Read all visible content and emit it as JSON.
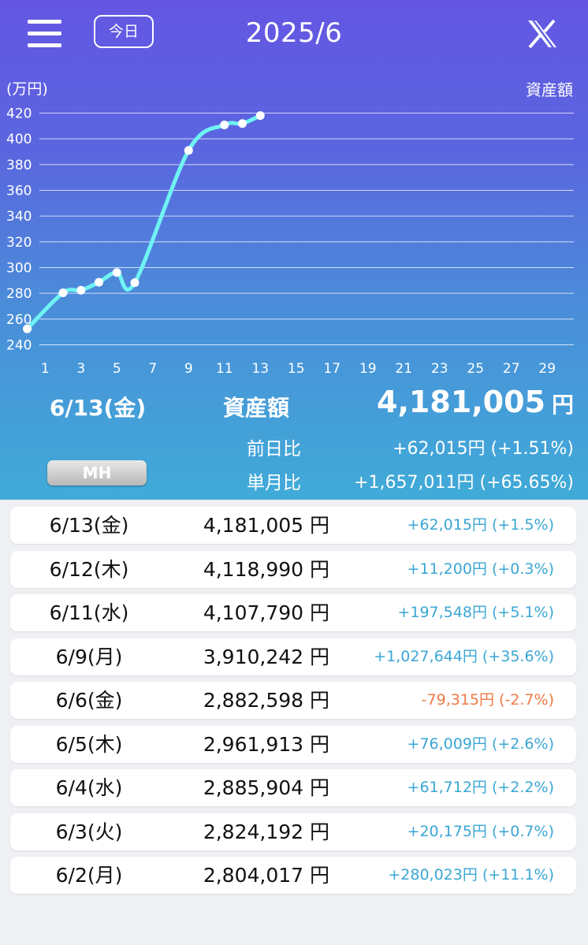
{
  "header": {
    "today_label": "今日",
    "month_title": "2025/6",
    "menu_icon": "hamburger-menu-icon",
    "share_icon": "x-logo-icon"
  },
  "chart_data": {
    "type": "line",
    "unit_label": "(万円)",
    "series_label": "資産額",
    "y_ticks": [
      420,
      400,
      380,
      360,
      340,
      320,
      300,
      280,
      260,
      240
    ],
    "x_ticks": [
      1,
      3,
      5,
      7,
      9,
      11,
      13,
      15,
      17,
      19,
      21,
      23,
      25,
      27,
      29
    ],
    "ylim": [
      240,
      420
    ],
    "xlim": [
      0,
      30
    ],
    "grid": true,
    "line_color": "#6ff3f3",
    "series": [
      {
        "x": [
          0,
          2,
          3,
          4,
          5,
          6,
          9,
          11,
          12,
          13
        ],
        "y": [
          252.4,
          280.4,
          282.4,
          288.6,
          296.2,
          288.3,
          391.0,
          410.8,
          411.9,
          418.1
        ]
      }
    ]
  },
  "summary": {
    "date": "6/13(金)",
    "label": "資産額",
    "value": "4,181,005",
    "yen": "円",
    "day_label": "前日比",
    "day_change": "+62,015円 (+1.51%)",
    "month_label": "単月比",
    "month_change": "+1,657,011円 (+65.65%)",
    "mh_label": "MH"
  },
  "colors": {
    "positive": "#3aa6d4",
    "negative": "#ee7a44"
  },
  "rows": [
    {
      "date": "6/13(金)",
      "value": "4,181,005 円",
      "change": "+62,015円 (+1.5%)",
      "positive": true
    },
    {
      "date": "6/12(木)",
      "value": "4,118,990 円",
      "change": "+11,200円 (+0.3%)",
      "positive": true
    },
    {
      "date": "6/11(水)",
      "value": "4,107,790 円",
      "change": "+197,548円 (+5.1%)",
      "positive": true
    },
    {
      "date": "6/9(月)",
      "value": "3,910,242 円",
      "change": "+1,027,644円 (+35.6%)",
      "positive": true
    },
    {
      "date": "6/6(金)",
      "value": "2,882,598 円",
      "change": "-79,315円 (-2.7%)",
      "positive": false
    },
    {
      "date": "6/5(木)",
      "value": "2,961,913 円",
      "change": "+76,009円 (+2.6%)",
      "positive": true
    },
    {
      "date": "6/4(水)",
      "value": "2,885,904 円",
      "change": "+61,712円 (+2.2%)",
      "positive": true
    },
    {
      "date": "6/3(火)",
      "value": "2,824,192 円",
      "change": "+20,175円 (+0.7%)",
      "positive": true
    },
    {
      "date": "6/2(月)",
      "value": "2,804,017 円",
      "change": "+280,023円 (+11.1%)",
      "positive": true
    }
  ]
}
